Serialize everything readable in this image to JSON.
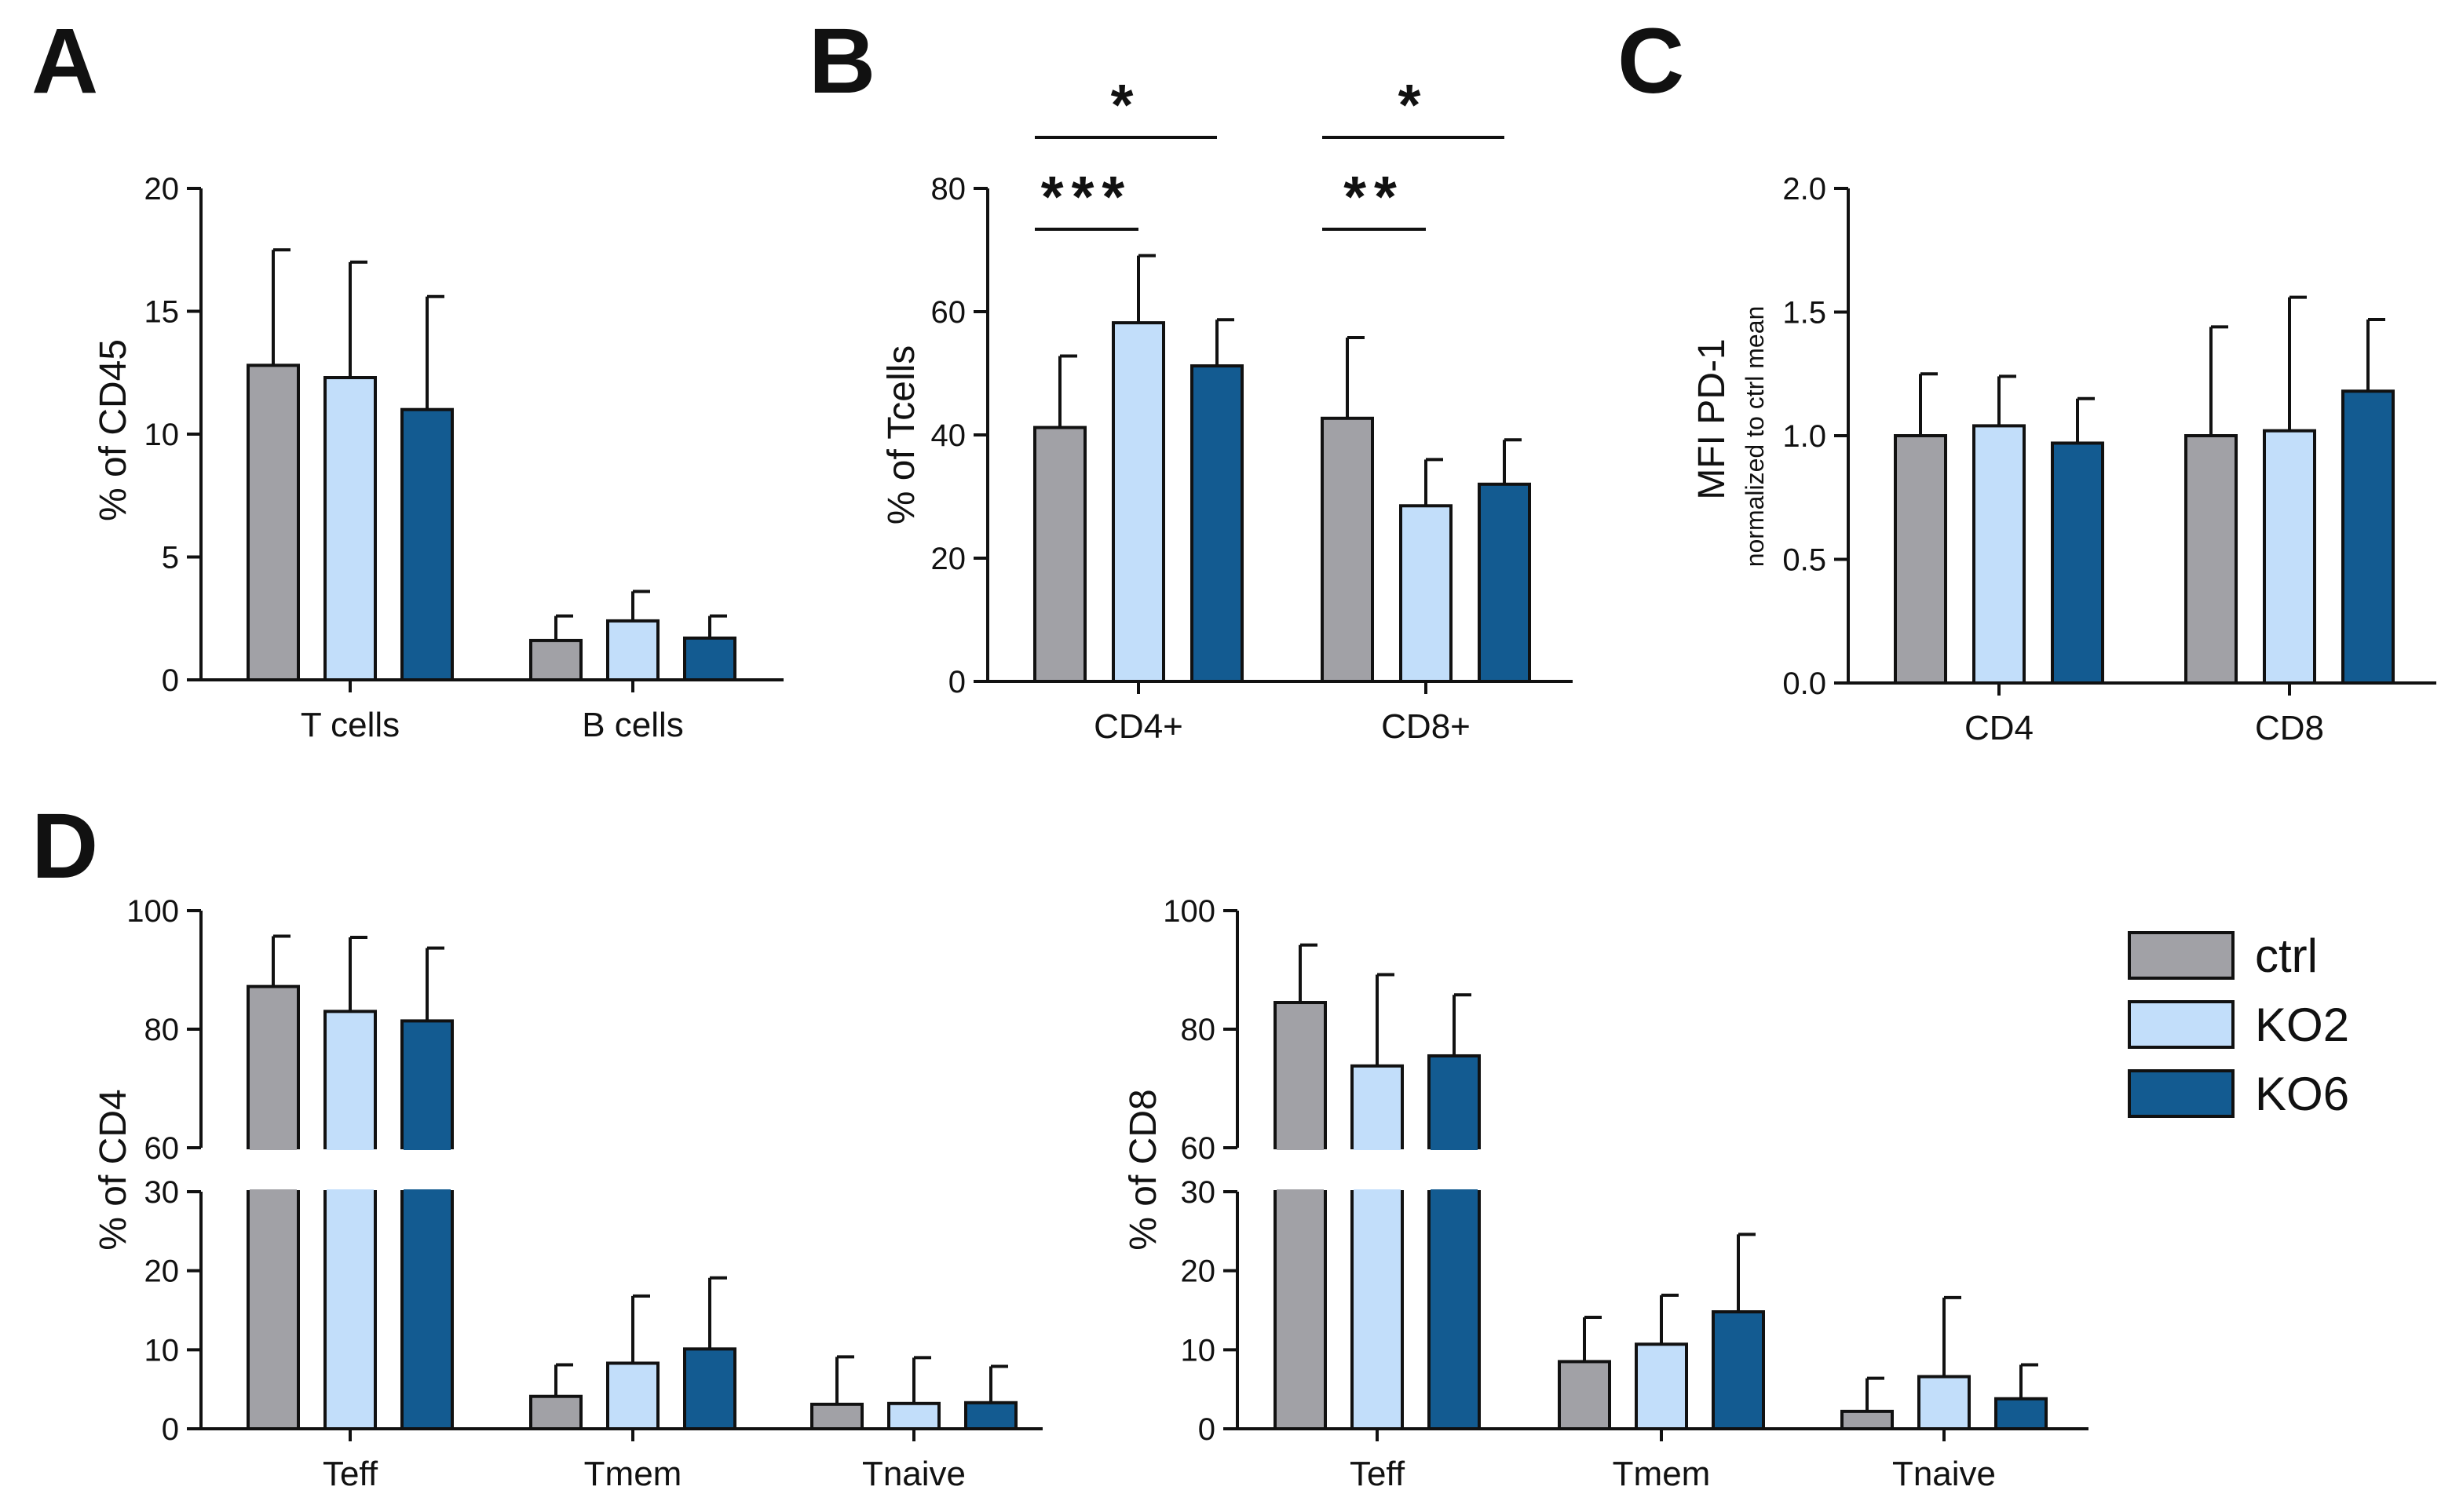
{
  "legend": {
    "items": [
      {
        "name": "ctrl",
        "color": "#a1a1a6"
      },
      {
        "name": "KO2",
        "color": "#c2defa"
      },
      {
        "name": "KO6",
        "color": "#135b91"
      }
    ]
  },
  "chart_data": [
    {
      "panel": "A",
      "type": "bar",
      "title": "",
      "xlabel": "",
      "ylabel": "% of CD45",
      "ylim": [
        0,
        20
      ],
      "yticks": [
        0,
        5,
        10,
        15,
        20
      ],
      "ytick_labels": [
        "0",
        "5",
        "10",
        "15",
        "20"
      ],
      "categories": [
        "T cells",
        "B cells"
      ],
      "series": [
        {
          "name": "ctrl",
          "values": [
            12.8,
            1.6
          ],
          "errors": [
            4.7,
            1.0
          ]
        },
        {
          "name": "KO2",
          "values": [
            12.3,
            2.4
          ],
          "errors": [
            4.7,
            1.2
          ]
        },
        {
          "name": "KO6",
          "values": [
            11.0,
            1.7
          ],
          "errors": [
            4.6,
            0.9
          ]
        }
      ],
      "annotations": []
    },
    {
      "panel": "B",
      "type": "bar",
      "title": "",
      "xlabel": "",
      "ylabel": "% of Tcells",
      "ylim": [
        0,
        80
      ],
      "yticks": [
        0,
        20,
        40,
        60,
        80
      ],
      "ytick_labels": [
        "0",
        "20",
        "40",
        "60",
        "80"
      ],
      "categories": [
        "CD4+",
        "CD8+"
      ],
      "series": [
        {
          "name": "ctrl",
          "values": [
            41.2,
            42.7
          ],
          "errors": [
            11.6,
            13.1
          ]
        },
        {
          "name": "KO2",
          "values": [
            58.2,
            28.5
          ],
          "errors": [
            10.9,
            7.5
          ]
        },
        {
          "name": "KO6",
          "values": [
            51.2,
            32.0
          ],
          "errors": [
            7.5,
            7.2
          ]
        }
      ],
      "annotations": [
        {
          "group": "CD4+",
          "from": "ctrl",
          "to": "KO2",
          "label": "***",
          "level": 80
        },
        {
          "group": "CD4+",
          "from": "ctrl",
          "to": "KO6",
          "label": "*",
          "level": 87
        },
        {
          "group": "CD8+",
          "from": "ctrl",
          "to": "KO2",
          "label": "**",
          "level": 80
        },
        {
          "group": "CD8+",
          "from": "ctrl",
          "to": "KO6",
          "label": "*",
          "level": 87
        }
      ]
    },
    {
      "panel": "C",
      "type": "bar",
      "title": "",
      "xlabel": "",
      "ylabel": "MFI PD-1",
      "ylabel_sub": "normalized to ctrl mean",
      "ylim": [
        0,
        2
      ],
      "yticks": [
        0,
        0.5,
        1.0,
        1.5,
        2.0
      ],
      "ytick_labels": [
        "0.0",
        "0.5",
        "1.0",
        "1.5",
        "2.0"
      ],
      "categories": [
        "CD4",
        "CD8"
      ],
      "series": [
        {
          "name": "ctrl",
          "values": [
            1.0,
            1.0
          ],
          "errors": [
            0.25,
            0.44
          ]
        },
        {
          "name": "KO2",
          "values": [
            1.04,
            1.02
          ],
          "errors": [
            0.2,
            0.54
          ]
        },
        {
          "name": "KO6",
          "values": [
            0.97,
            1.18
          ],
          "errors": [
            0.18,
            0.29
          ]
        }
      ],
      "annotations": []
    },
    {
      "panel": "D",
      "type": "bar",
      "title": "",
      "xlabel": "",
      "ylabel": "% of CD4",
      "axis_break": {
        "lower": [
          0,
          30
        ],
        "upper": [
          60,
          100
        ]
      },
      "lower_ticks": [
        0,
        10,
        20,
        30
      ],
      "lower_tick_labels": [
        "0",
        "10",
        "20",
        "30"
      ],
      "upper_ticks": [
        60,
        80,
        100
      ],
      "upper_tick_labels": [
        "60",
        "80",
        "100"
      ],
      "categories": [
        "Teff",
        "Tmem",
        "Tnaive"
      ],
      "series": [
        {
          "name": "ctrl",
          "values": [
            87.2,
            4.1,
            3.1
          ],
          "errors": [
            8.5,
            4.0,
            6.0
          ]
        },
        {
          "name": "KO2",
          "values": [
            83.0,
            8.3,
            3.2
          ],
          "errors": [
            12.5,
            8.5,
            5.8
          ]
        },
        {
          "name": "KO6",
          "values": [
            81.4,
            10.1,
            3.3
          ],
          "errors": [
            12.3,
            9.0,
            4.6
          ]
        }
      ],
      "annotations": []
    },
    {
      "panel": "D",
      "type": "bar",
      "title": "",
      "xlabel": "",
      "ylabel": "% of CD8",
      "axis_break": {
        "lower": [
          0,
          30
        ],
        "upper": [
          60,
          100
        ]
      },
      "lower_ticks": [
        0,
        10,
        20,
        30
      ],
      "lower_tick_labels": [
        "0",
        "10",
        "20",
        "30"
      ],
      "upper_ticks": [
        60,
        80,
        100
      ],
      "upper_tick_labels": [
        "60",
        "80",
        "100"
      ],
      "categories": [
        "Teff",
        "Tmem",
        "Tnaive"
      ],
      "series": [
        {
          "name": "ctrl",
          "values": [
            84.5,
            8.5,
            2.2
          ],
          "errors": [
            9.7,
            5.6,
            4.2
          ]
        },
        {
          "name": "KO2",
          "values": [
            73.8,
            10.7,
            6.6
          ],
          "errors": [
            15.4,
            6.2,
            10.0
          ]
        },
        {
          "name": "KO6",
          "values": [
            75.5,
            14.8,
            3.8
          ],
          "errors": [
            10.3,
            9.8,
            4.3
          ]
        }
      ],
      "annotations": []
    }
  ]
}
